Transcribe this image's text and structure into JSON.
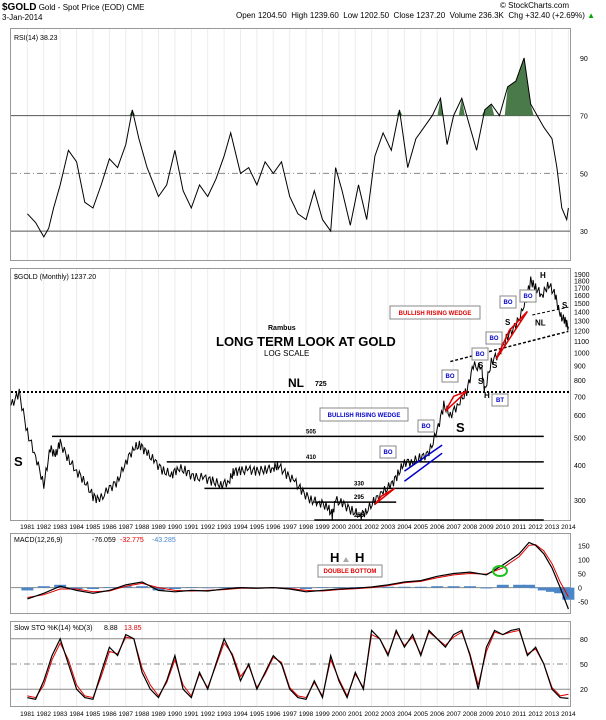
{
  "header": {
    "symbol": "$GOLD",
    "name": "Gold - Spot Price (EOD)",
    "exchange": "CME",
    "date": "3-Jan-2014",
    "open_label": "Open",
    "open": "1204.50",
    "high_label": "High",
    "high": "1239.60",
    "low_label": "Low",
    "low": "1202.50",
    "close_label": "Close",
    "close": "1237.20",
    "volume_label": "Volume",
    "volume": "236.3K",
    "chg_label": "Chg",
    "chg": "+32.40 (+2.69%)",
    "up_arrow": "▲",
    "credit": "© StockCharts.com"
  },
  "chart_data": [
    {
      "type": "line",
      "panel": "rsi",
      "legend": "RSI(14) 38.23",
      "y_ticks": [
        30,
        50,
        70,
        90
      ],
      "ylim": [
        20,
        100
      ],
      "overbought": 70,
      "oversold": 30,
      "mid": 50,
      "x": [
        1981,
        1981.5,
        1982,
        1982.3,
        1982.6,
        1983,
        1983.5,
        1984,
        1984.5,
        1985,
        1985.5,
        1986,
        1986.5,
        1987,
        1987.4,
        1987.8,
        1988.3,
        1989,
        1989.5,
        1990,
        1990.5,
        1991,
        1991.5,
        1992,
        1992.5,
        1993,
        1993.4,
        1994,
        1994.5,
        1995,
        1995.5,
        1996,
        1996.5,
        1997,
        1997.5,
        1998,
        1998.5,
        1999,
        1999.5,
        1999.8,
        2000.2,
        2000.7,
        2001.2,
        2001.7,
        2002.2,
        2002.7,
        2003.2,
        2003.7,
        2004.2,
        2004.7,
        2005.2,
        2005.7,
        2006.2,
        2006.6,
        2007,
        2007.5,
        2008,
        2008.4,
        2008.9,
        2009.3,
        2009.8,
        2010.3,
        2010.8,
        2011.3,
        2011.7,
        2012.1,
        2012.5,
        2013,
        2013.3,
        2013.6,
        2013.9,
        2014
      ],
      "values": [
        36,
        33,
        28,
        31,
        38,
        46,
        58,
        54,
        40,
        38,
        46,
        55,
        52,
        60,
        72,
        62,
        52,
        42,
        46,
        58,
        44,
        38,
        46,
        42,
        48,
        56,
        64,
        50,
        52,
        46,
        54,
        50,
        54,
        42,
        36,
        34,
        44,
        34,
        30,
        52,
        44,
        32,
        46,
        34,
        56,
        64,
        58,
        72,
        52,
        62,
        66,
        70,
        76,
        60,
        70,
        76,
        66,
        58,
        72,
        74,
        70,
        80,
        82,
        90,
        74,
        70,
        66,
        62,
        52,
        38,
        34,
        38
      ]
    },
    {
      "type": "line",
      "panel": "price",
      "legend": "$GOLD (Monthly) 1237.20",
      "y_scale": "log",
      "y_ticks": [
        300,
        400,
        500,
        600,
        700,
        800,
        900,
        1000,
        1100,
        1200,
        1300,
        1400,
        1500,
        1600,
        1700,
        1800,
        1900
      ],
      "ylim": [
        255,
        1980
      ],
      "x": [
        1980.0,
        1980.5,
        1981,
        1981.5,
        1982,
        1982.4,
        1982.7,
        1983,
        1983.5,
        1984,
        1984.5,
        1985,
        1985.4,
        1986,
        1986.5,
        1987,
        1987.5,
        1987.9,
        1988.3,
        1988.8,
        1989.3,
        1989.8,
        1990.2,
        1990.7,
        1991.2,
        1991.8,
        1992.3,
        1992.8,
        1993.3,
        1993.6,
        1994,
        1994.5,
        1995,
        1995.5,
        1996,
        1996.3,
        1996.8,
        1997.3,
        1997.8,
        1998.3,
        1998.8,
        1999.3,
        1999.6,
        1999.8,
        2000.3,
        2000.8,
        2001.3,
        2001.7,
        2002.2,
        2002.7,
        2003.2,
        2003.6,
        2004,
        2004.5,
        2005,
        2005.5,
        2006,
        2006.4,
        2006.8,
        2007.3,
        2007.8,
        2008.2,
        2008.7,
        2008.9,
        2009.3,
        2009.8,
        2010.3,
        2010.8,
        2011.3,
        2011.7,
        2012,
        2012.4,
        2012.8,
        2013.2,
        2013.5,
        2013.8,
        2014
      ],
      "values": [
        650,
        720,
        520,
        430,
        340,
        460,
        430,
        480,
        420,
        380,
        350,
        310,
        300,
        330,
        350,
        410,
        460,
        470,
        440,
        410,
        380,
        370,
        390,
        380,
        360,
        360,
        350,
        340,
        350,
        380,
        380,
        385,
        380,
        385,
        390,
        400,
        370,
        350,
        320,
        300,
        295,
        285,
        265,
        300,
        290,
        275,
        265,
        275,
        300,
        320,
        340,
        370,
        410,
        410,
        425,
        440,
        530,
        650,
        600,
        660,
        730,
        900,
        880,
        730,
        930,
        1000,
        1150,
        1250,
        1450,
        1800,
        1700,
        1600,
        1750,
        1600,
        1350,
        1300,
        1237
      ]
    },
    {
      "type": "line",
      "panel": "macd",
      "legend_name": "MACD(12,26,9)",
      "legend_vals": [
        "-76.059",
        "-32.775",
        "-43.285"
      ],
      "y_ticks": [
        -50,
        0,
        50,
        100,
        150
      ],
      "ylim": [
        -90,
        190
      ],
      "x": [
        1981,
        1982,
        1983,
        1984,
        1985,
        1986,
        1987,
        1988,
        1989,
        1990,
        1991,
        1992,
        1993,
        1994,
        1995,
        1996,
        1997,
        1998,
        1999,
        2000,
        2001,
        2002,
        2003,
        2004,
        2005,
        2006,
        2007,
        2008,
        2009,
        2010,
        2011,
        2011.6,
        2012,
        2012.5,
        2013,
        2013.5,
        2014
      ],
      "macd": [
        -40,
        -20,
        5,
        -10,
        -20,
        -10,
        10,
        20,
        -10,
        -15,
        -10,
        -12,
        -5,
        0,
        -2,
        0,
        -5,
        -15,
        -10,
        -5,
        -2,
        2,
        10,
        20,
        25,
        40,
        50,
        55,
        45,
        80,
        120,
        160,
        150,
        120,
        70,
        0,
        -76
      ],
      "signal": [
        -35,
        -25,
        -5,
        -5,
        -15,
        -12,
        5,
        15,
        0,
        -10,
        -12,
        -10,
        -7,
        -2,
        -2,
        -1,
        -3,
        -10,
        -12,
        -7,
        -4,
        0,
        7,
        17,
        22,
        35,
        45,
        50,
        48,
        70,
        110,
        150,
        152,
        130,
        85,
        20,
        -33
      ],
      "hist": [
        -10,
        5,
        10,
        -5,
        -5,
        2,
        5,
        5,
        -10,
        -5,
        2,
        -2,
        2,
        2,
        0,
        1,
        -2,
        -5,
        2,
        2,
        2,
        2,
        3,
        3,
        3,
        5,
        5,
        5,
        -3,
        10,
        10,
        10,
        -2,
        -10,
        -15,
        -20,
        -43
      ]
    },
    {
      "type": "line",
      "panel": "sto",
      "legend_name": "Slow STO %K(14) %D(3)",
      "legend_vals": [
        "8.88",
        "13.85"
      ],
      "y_ticks": [
        20,
        50,
        80
      ],
      "ylim": [
        0,
        100
      ],
      "x": [
        1981,
        1981.5,
        1982,
        1982.5,
        1983,
        1983.5,
        1984,
        1984.5,
        1985,
        1985.5,
        1986,
        1986.5,
        1987,
        1987.5,
        1988,
        1988.5,
        1989,
        1989.5,
        1990,
        1990.5,
        1991,
        1991.5,
        1992,
        1992.5,
        1993,
        1993.5,
        1994,
        1994.5,
        1995,
        1995.5,
        1996,
        1996.5,
        1997,
        1997.5,
        1998,
        1998.5,
        1999,
        1999.5,
        2000,
        2000.5,
        2001,
        2001.5,
        2002,
        2002.5,
        2003,
        2003.5,
        2004,
        2004.5,
        2005,
        2005.5,
        2006,
        2006.5,
        2007,
        2007.5,
        2008,
        2008.5,
        2009,
        2009.5,
        2010,
        2010.5,
        2011,
        2011.5,
        2012,
        2012.5,
        2013,
        2013.5,
        2014
      ],
      "k": [
        10,
        8,
        30,
        60,
        80,
        50,
        20,
        10,
        8,
        40,
        70,
        60,
        85,
        80,
        40,
        20,
        10,
        30,
        60,
        20,
        10,
        40,
        20,
        50,
        80,
        60,
        30,
        50,
        20,
        40,
        60,
        50,
        20,
        10,
        8,
        30,
        10,
        60,
        30,
        10,
        40,
        20,
        90,
        80,
        60,
        90,
        70,
        85,
        60,
        90,
        80,
        70,
        85,
        90,
        60,
        20,
        70,
        90,
        85,
        90,
        92,
        60,
        70,
        50,
        20,
        10,
        9
      ],
      "d": [
        12,
        10,
        25,
        55,
        75,
        55,
        25,
        12,
        10,
        35,
        65,
        62,
        82,
        80,
        45,
        25,
        12,
        28,
        55,
        25,
        12,
        38,
        22,
        48,
        75,
        62,
        35,
        48,
        22,
        38,
        58,
        52,
        22,
        12,
        10,
        28,
        12,
        55,
        32,
        12,
        38,
        22,
        85,
        80,
        62,
        88,
        72,
        82,
        62,
        88,
        80,
        72,
        82,
        88,
        62,
        25,
        65,
        88,
        85,
        88,
        90,
        62,
        68,
        50,
        22,
        12,
        14
      ]
    }
  ],
  "x_axis": {
    "years": [
      1981,
      1982,
      1983,
      1984,
      1985,
      1986,
      1987,
      1988,
      1989,
      1990,
      1991,
      1992,
      1993,
      1994,
      1995,
      1996,
      1997,
      1998,
      1999,
      2000,
      2001,
      2002,
      2003,
      2004,
      2005,
      2006,
      2007,
      2008,
      2009,
      2010,
      2011,
      2012,
      2013,
      2014
    ]
  },
  "annotations": {
    "author": "Rambus",
    "title": "LONG TERM LOOK AT GOLD",
    "subtitle": "LOG SCALE",
    "neckline_label": "NL",
    "neckline_value": "725",
    "neckline2_label": "NL",
    "levels": [
      {
        "label": "505",
        "value": 505
      },
      {
        "label": "410",
        "value": 410
      },
      {
        "label": "330",
        "value": 330
      },
      {
        "label": "295",
        "value": 295
      },
      {
        "label": "255",
        "value": 255
      }
    ],
    "left_shoulder": "S",
    "right_shoulder": "S",
    "small_shoulder_1": "S",
    "small_shoulder_2": "S",
    "small_shoulder_3": "S",
    "small_head": "H",
    "small_shoulder_4": "S",
    "head_top": "H",
    "shoulder_top": "S",
    "wedge_1": "BULLISH RISING WEDGE",
    "wedge_2": "BULLISH RISING WEDGE",
    "bo": "BO",
    "bt": "BT",
    "double_bottom": "DOUBLE BOTTOM",
    "h1": "H",
    "h2": "H"
  },
  "colors": {
    "price": "#000000",
    "red": "#e00000",
    "blue": "#0000cc",
    "hist": "#4a86c8",
    "rsi_fill": "#4a7a4a",
    "rsi_fill_low": "#8a2020",
    "circle": "#22c022"
  }
}
